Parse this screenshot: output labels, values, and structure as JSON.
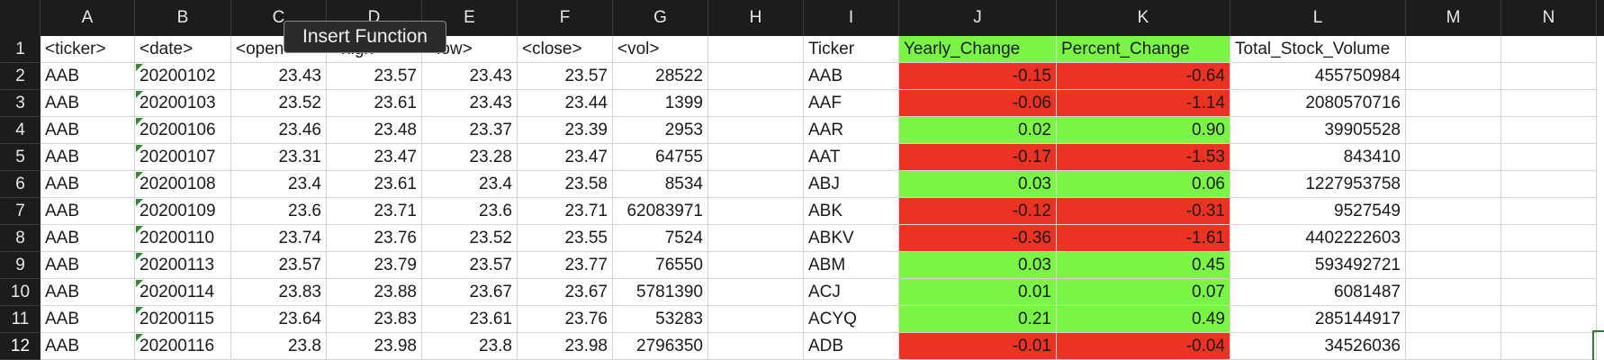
{
  "columns": [
    "A",
    "B",
    "C",
    "D",
    "E",
    "F",
    "G",
    "H",
    "I",
    "J",
    "K",
    "L",
    "M",
    "N"
  ],
  "tooltip": "Insert Function",
  "rows": [
    {
      "num": "1",
      "cells": [
        "<ticker>",
        "<date>",
        "<open>",
        "<high>",
        "<low>",
        "<close>",
        "<vol>",
        "",
        "Ticker",
        "Yearly_Change",
        "Percent_Change",
        "Total_Stock_Volume",
        "",
        ""
      ]
    },
    {
      "num": "2",
      "cells": [
        "AAB",
        "20200102",
        "23.43",
        "23.57",
        "23.43",
        "23.57",
        "28522",
        "",
        "AAB",
        "-0.15",
        "-0.64",
        "455750984",
        "",
        ""
      ]
    },
    {
      "num": "3",
      "cells": [
        "AAB",
        "20200103",
        "23.52",
        "23.61",
        "23.43",
        "23.44",
        "1399",
        "",
        "AAF",
        "-0.06",
        "-1.14",
        "2080570716",
        "",
        ""
      ]
    },
    {
      "num": "4",
      "cells": [
        "AAB",
        "20200106",
        "23.46",
        "23.48",
        "23.37",
        "23.39",
        "2953",
        "",
        "AAR",
        "0.02",
        "0.90",
        "39905528",
        "",
        ""
      ]
    },
    {
      "num": "5",
      "cells": [
        "AAB",
        "20200107",
        "23.31",
        "23.47",
        "23.28",
        "23.47",
        "64755",
        "",
        "AAT",
        "-0.17",
        "-1.53",
        "843410",
        "",
        ""
      ]
    },
    {
      "num": "6",
      "cells": [
        "AAB",
        "20200108",
        "23.4",
        "23.61",
        "23.4",
        "23.58",
        "8534",
        "",
        "ABJ",
        "0.03",
        "0.06",
        "1227953758",
        "",
        ""
      ]
    },
    {
      "num": "7",
      "cells": [
        "AAB",
        "20200109",
        "23.6",
        "23.71",
        "23.6",
        "23.71",
        "62083971",
        "",
        "ABK",
        "-0.12",
        "-0.31",
        "9527549",
        "",
        ""
      ]
    },
    {
      "num": "8",
      "cells": [
        "AAB",
        "20200110",
        "23.74",
        "23.76",
        "23.52",
        "23.55",
        "7524",
        "",
        "ABKV",
        "-0.36",
        "-1.61",
        "4402222603",
        "",
        ""
      ]
    },
    {
      "num": "9",
      "cells": [
        "AAB",
        "20200113",
        "23.57",
        "23.79",
        "23.57",
        "23.77",
        "76550",
        "",
        "ABM",
        "0.03",
        "0.45",
        "593492721",
        "",
        ""
      ]
    },
    {
      "num": "10",
      "cells": [
        "AAB",
        "20200114",
        "23.83",
        "23.88",
        "23.67",
        "23.67",
        "5781390",
        "",
        "ACJ",
        "0.01",
        "0.07",
        "6081487",
        "",
        ""
      ]
    },
    {
      "num": "11",
      "cells": [
        "AAB",
        "20200115",
        "23.64",
        "23.83",
        "23.61",
        "23.76",
        "53283",
        "",
        "ACYQ",
        "0.21",
        "0.49",
        "285144917",
        "",
        ""
      ]
    },
    {
      "num": "12",
      "cells": [
        "AAB",
        "20200116",
        "23.8",
        "23.98",
        "23.8",
        "23.98",
        "2796350",
        "",
        "ADB",
        "-0.01",
        "-0.04",
        "34526036",
        "",
        ""
      ]
    }
  ],
  "colors": {
    "positive": "#7af545",
    "negative": "#ec3323",
    "header_bg": "#1c1c1c"
  }
}
